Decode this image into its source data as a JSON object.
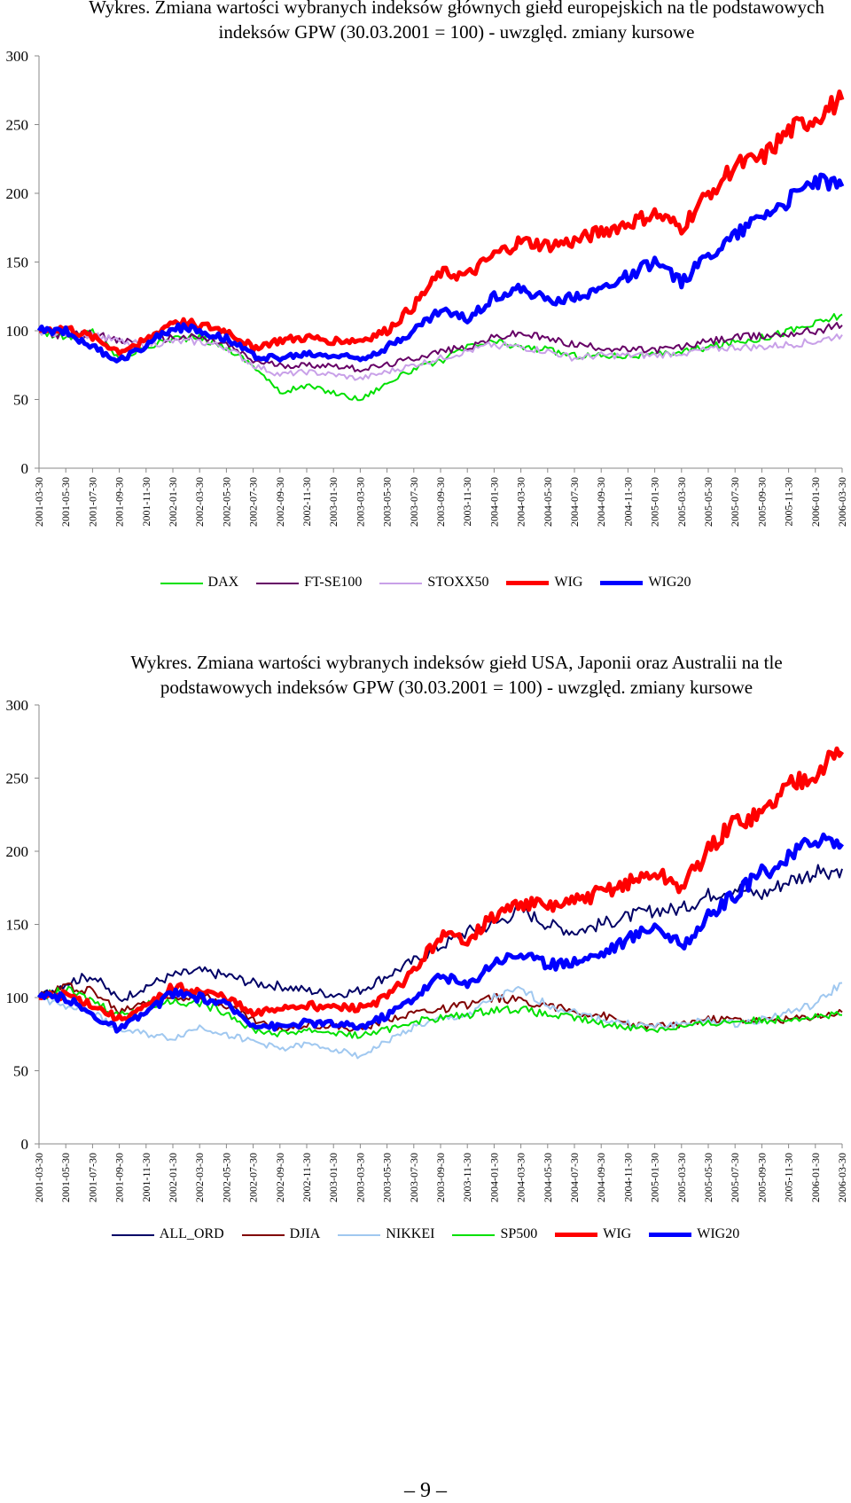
{
  "chart_data": [
    {
      "type": "line",
      "title": "Wykres. Zmiana wartości wybranych indeksów głównych giełd europejskich na tle podstawowych indeksów GPW  (30.03.2001 = 100) - uwzględ. zmiany kursowe",
      "xlabel": "",
      "ylabel": "",
      "ylim": [
        0,
        300
      ],
      "yticks": [
        "0",
        "50",
        "100",
        "150",
        "200",
        "250",
        "300"
      ],
      "grid": false,
      "legend_position": "bottom",
      "categories": [
        "2001-03-30",
        "2001-05-30",
        "2001-07-30",
        "2001-09-30",
        "2001-11-30",
        "2002-01-30",
        "2002-03-30",
        "2002-05-30",
        "2002-07-30",
        "2002-09-30",
        "2002-11-30",
        "2003-01-30",
        "2003-03-30",
        "2003-05-30",
        "2003-07-30",
        "2003-09-30",
        "2003-11-30",
        "2004-01-30",
        "2004-03-30",
        "2004-05-30",
        "2004-07-30",
        "2004-09-30",
        "2004-11-30",
        "2005-01-30",
        "2005-03-30",
        "2005-05-30",
        "2005-07-30",
        "2005-09-30",
        "2005-11-30",
        "2006-01-30",
        "2006-03-30"
      ],
      "series": [
        {
          "name": "DAX",
          "color": "#00e000",
          "width": 2,
          "values": [
            100,
            95,
            100,
            80,
            88,
            95,
            95,
            88,
            75,
            55,
            60,
            55,
            50,
            62,
            72,
            78,
            88,
            92,
            88,
            86,
            82,
            82,
            82,
            82,
            85,
            88,
            92,
            95,
            100,
            105,
            112
          ]
        },
        {
          "name": "FT-SE100",
          "color": "#660066",
          "width": 2,
          "values": [
            100,
            96,
            98,
            92,
            93,
            95,
            95,
            90,
            78,
            75,
            75,
            75,
            72,
            75,
            80,
            85,
            88,
            95,
            98,
            94,
            90,
            88,
            86,
            86,
            88,
            92,
            95,
            96,
            98,
            100,
            104
          ]
        },
        {
          "name": "STOXX50",
          "color": "#c8a0e8",
          "width": 2,
          "values": [
            100,
            98,
            97,
            92,
            90,
            92,
            92,
            88,
            75,
            68,
            70,
            68,
            65,
            70,
            75,
            80,
            85,
            90,
            88,
            85,
            80,
            82,
            82,
            82,
            84,
            86,
            88,
            88,
            90,
            92,
            97
          ]
        },
        {
          "name": "WIG",
          "color": "#ff0000",
          "width": 5,
          "values": [
            100,
            102,
            95,
            85,
            93,
            107,
            104,
            100,
            88,
            93,
            95,
            93,
            93,
            100,
            118,
            142,
            140,
            155,
            165,
            162,
            165,
            172,
            178,
            185,
            175,
            200,
            220,
            225,
            245,
            255,
            268
          ]
        },
        {
          "name": "WIG20",
          "color": "#0000ff",
          "width": 5,
          "values": [
            100,
            100,
            88,
            78,
            90,
            103,
            100,
            95,
            82,
            80,
            83,
            82,
            80,
            88,
            100,
            115,
            108,
            125,
            130,
            122,
            125,
            130,
            140,
            150,
            135,
            155,
            170,
            185,
            195,
            210,
            205
          ]
        }
      ]
    },
    {
      "type": "line",
      "title": "Wykres. Zmiana wartości wybranych indeksów giełd USA, Japonii oraz Australii na tle podstawowych indeksów GPW  (30.03.2001 = 100) - uwzględ. zmiany kursowe",
      "xlabel": "",
      "ylabel": "",
      "ylim": [
        0,
        300
      ],
      "yticks": [
        "0",
        "50",
        "100",
        "150",
        "200",
        "250",
        "300"
      ],
      "grid": false,
      "legend_position": "bottom",
      "categories": [
        "2001-03-30",
        "2001-05-30",
        "2001-07-30",
        "2001-09-30",
        "2001-11-30",
        "2002-01-30",
        "2002-03-30",
        "2002-05-30",
        "2002-07-30",
        "2002-09-30",
        "2002-11-30",
        "2003-01-30",
        "2003-03-30",
        "2003-05-30",
        "2003-07-30",
        "2003-09-30",
        "2003-11-30",
        "2004-01-30",
        "2004-03-30",
        "2004-05-30",
        "2004-07-30",
        "2004-09-30",
        "2004-11-30",
        "2005-01-30",
        "2005-03-30",
        "2005-05-30",
        "2005-07-30",
        "2005-09-30",
        "2005-11-30",
        "2006-01-30",
        "2006-03-30"
      ],
      "series": [
        {
          "name": "ALL_ORD",
          "color": "#000066",
          "width": 2,
          "values": [
            100,
            110,
            115,
            98,
            108,
            115,
            118,
            115,
            110,
            108,
            105,
            102,
            105,
            115,
            125,
            135,
            145,
            150,
            160,
            150,
            145,
            150,
            155,
            160,
            160,
            170,
            175,
            170,
            180,
            185,
            188
          ]
        },
        {
          "name": "DJIA",
          "color": "#800000",
          "width": 2,
          "values": [
            100,
            108,
            105,
            90,
            98,
            100,
            102,
            95,
            85,
            78,
            82,
            80,
            78,
            85,
            90,
            92,
            95,
            100,
            98,
            95,
            90,
            88,
            82,
            80,
            82,
            85,
            85,
            84,
            85,
            87,
            90
          ]
        },
        {
          "name": "NIKKEI",
          "color": "#a0c8f0",
          "width": 2,
          "values": [
            100,
            95,
            90,
            78,
            75,
            72,
            80,
            75,
            70,
            65,
            68,
            65,
            60,
            70,
            80,
            85,
            88,
            100,
            105,
            95,
            90,
            85,
            82,
            80,
            82,
            84,
            82,
            85,
            90,
            95,
            110
          ]
        },
        {
          "name": "SP500",
          "color": "#00e000",
          "width": 2,
          "values": [
            100,
            105,
            98,
            88,
            95,
            98,
            96,
            90,
            78,
            75,
            78,
            76,
            74,
            78,
            84,
            86,
            88,
            92,
            92,
            88,
            86,
            82,
            80,
            78,
            80,
            82,
            84,
            84,
            86,
            87,
            88
          ]
        },
        {
          "name": "WIG",
          "color": "#ff0000",
          "width": 5,
          "values": [
            100,
            102,
            95,
            85,
            93,
            107,
            104,
            100,
            88,
            93,
            95,
            93,
            93,
            100,
            118,
            142,
            140,
            155,
            165,
            162,
            165,
            172,
            178,
            185,
            175,
            200,
            220,
            225,
            245,
            255,
            268
          ]
        },
        {
          "name": "WIG20",
          "color": "#0000ff",
          "width": 5,
          "values": [
            100,
            100,
            88,
            78,
            90,
            103,
            100,
            95,
            82,
            80,
            83,
            82,
            80,
            88,
            100,
            115,
            108,
            125,
            130,
            122,
            125,
            130,
            140,
            150,
            135,
            155,
            170,
            185,
            195,
            210,
            205
          ]
        }
      ]
    }
  ],
  "page": {
    "number": "– 9 –"
  }
}
